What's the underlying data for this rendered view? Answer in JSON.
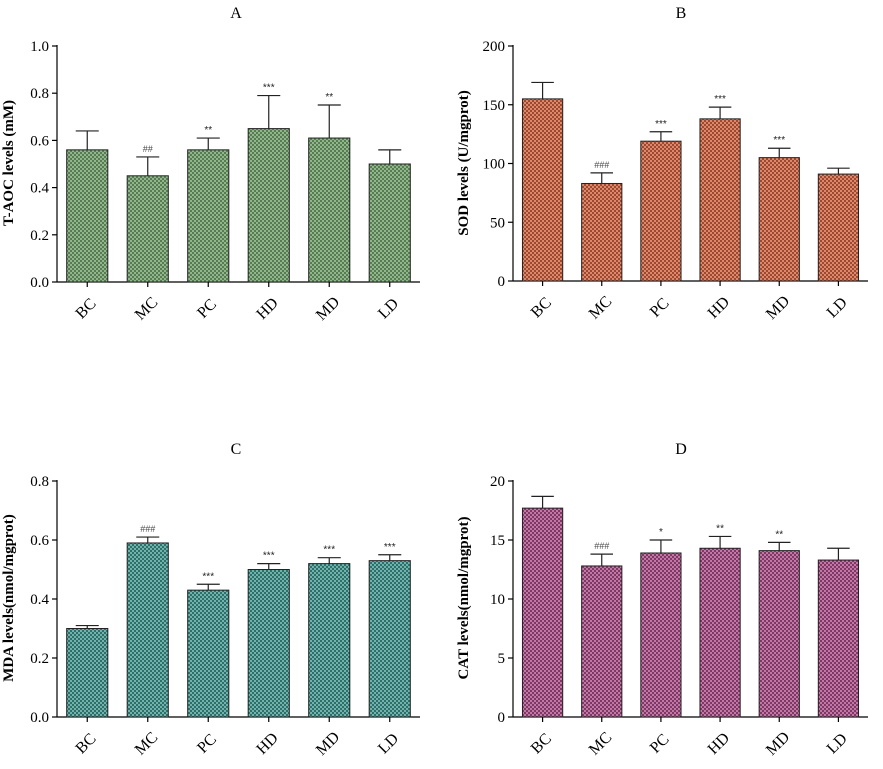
{
  "chart_data": [
    {
      "panel": "A",
      "type": "bar",
      "title": "A",
      "ylabel": "T-AOC levels (mM)",
      "categories": [
        "BC",
        "MC",
        "PC",
        "HD",
        "MD",
        "LD"
      ],
      "values": [
        0.56,
        0.45,
        0.56,
        0.65,
        0.61,
        0.5
      ],
      "errors": [
        0.08,
        0.08,
        0.05,
        0.14,
        0.14,
        0.06
      ],
      "significance": [
        "",
        "##",
        "**",
        "***",
        "**",
        ""
      ],
      "ylim": [
        0,
        1.0
      ],
      "yticks": [
        "0.0",
        "0.2",
        "0.4",
        "0.6",
        "0.8",
        "1.0"
      ],
      "ytick_values": [
        0,
        0.2,
        0.4,
        0.6,
        0.8,
        1.0
      ],
      "grid": false,
      "color": "#8fb88a",
      "color_dark": "#5a7a55"
    },
    {
      "panel": "B",
      "type": "bar",
      "title": "B",
      "ylabel": "SOD levels (U/mgprot)",
      "categories": [
        "BC",
        "MC",
        "PC",
        "HD",
        "MD",
        "LD"
      ],
      "values": [
        155,
        83,
        119,
        138,
        105,
        91
      ],
      "errors": [
        14,
        9,
        8,
        10,
        8,
        5
      ],
      "significance": [
        "",
        "###",
        "***",
        "***",
        "***",
        ""
      ],
      "ylim": [
        0,
        200
      ],
      "yticks": [
        "0",
        "50",
        "100",
        "150",
        "200"
      ],
      "ytick_values": [
        0,
        50,
        100,
        150,
        200
      ],
      "grid": false,
      "color": "#e0876a",
      "color_dark": "#9a4a33"
    },
    {
      "panel": "C",
      "type": "bar",
      "title": "C",
      "ylabel": "MDA levels(nmol/mgprot)",
      "categories": [
        "BC",
        "MC",
        "PC",
        "HD",
        "MD",
        "LD"
      ],
      "values": [
        0.3,
        0.59,
        0.43,
        0.5,
        0.52,
        0.53
      ],
      "errors": [
        0.01,
        0.02,
        0.02,
        0.02,
        0.02,
        0.02
      ],
      "significance": [
        "",
        "###",
        "***",
        "***",
        "***",
        "***"
      ],
      "ylim": [
        0,
        0.8
      ],
      "yticks": [
        "0.0",
        "0.2",
        "0.4",
        "0.6",
        "0.8"
      ],
      "ytick_values": [
        0,
        0.2,
        0.4,
        0.6,
        0.8
      ],
      "grid": false,
      "color": "#6fb3ac",
      "color_dark": "#2f6e69"
    },
    {
      "panel": "D",
      "type": "bar",
      "title": "D",
      "ylabel": "CAT levels(nmol/mgprot)",
      "categories": [
        "BC",
        "MC",
        "PC",
        "HD",
        "MD",
        "LD"
      ],
      "values": [
        17.7,
        12.8,
        13.9,
        14.3,
        14.1,
        13.3
      ],
      "errors": [
        1.0,
        1.0,
        1.1,
        1.0,
        0.7,
        1.0
      ],
      "significance": [
        "",
        "###",
        "*",
        "**",
        "**",
        ""
      ],
      "ylim": [
        0,
        20
      ],
      "yticks": [
        "0",
        "5",
        "10",
        "15",
        "20"
      ],
      "ytick_values": [
        0,
        5,
        10,
        15,
        20
      ],
      "grid": false,
      "color": "#c476a6",
      "color_dark": "#7a3a63"
    }
  ]
}
